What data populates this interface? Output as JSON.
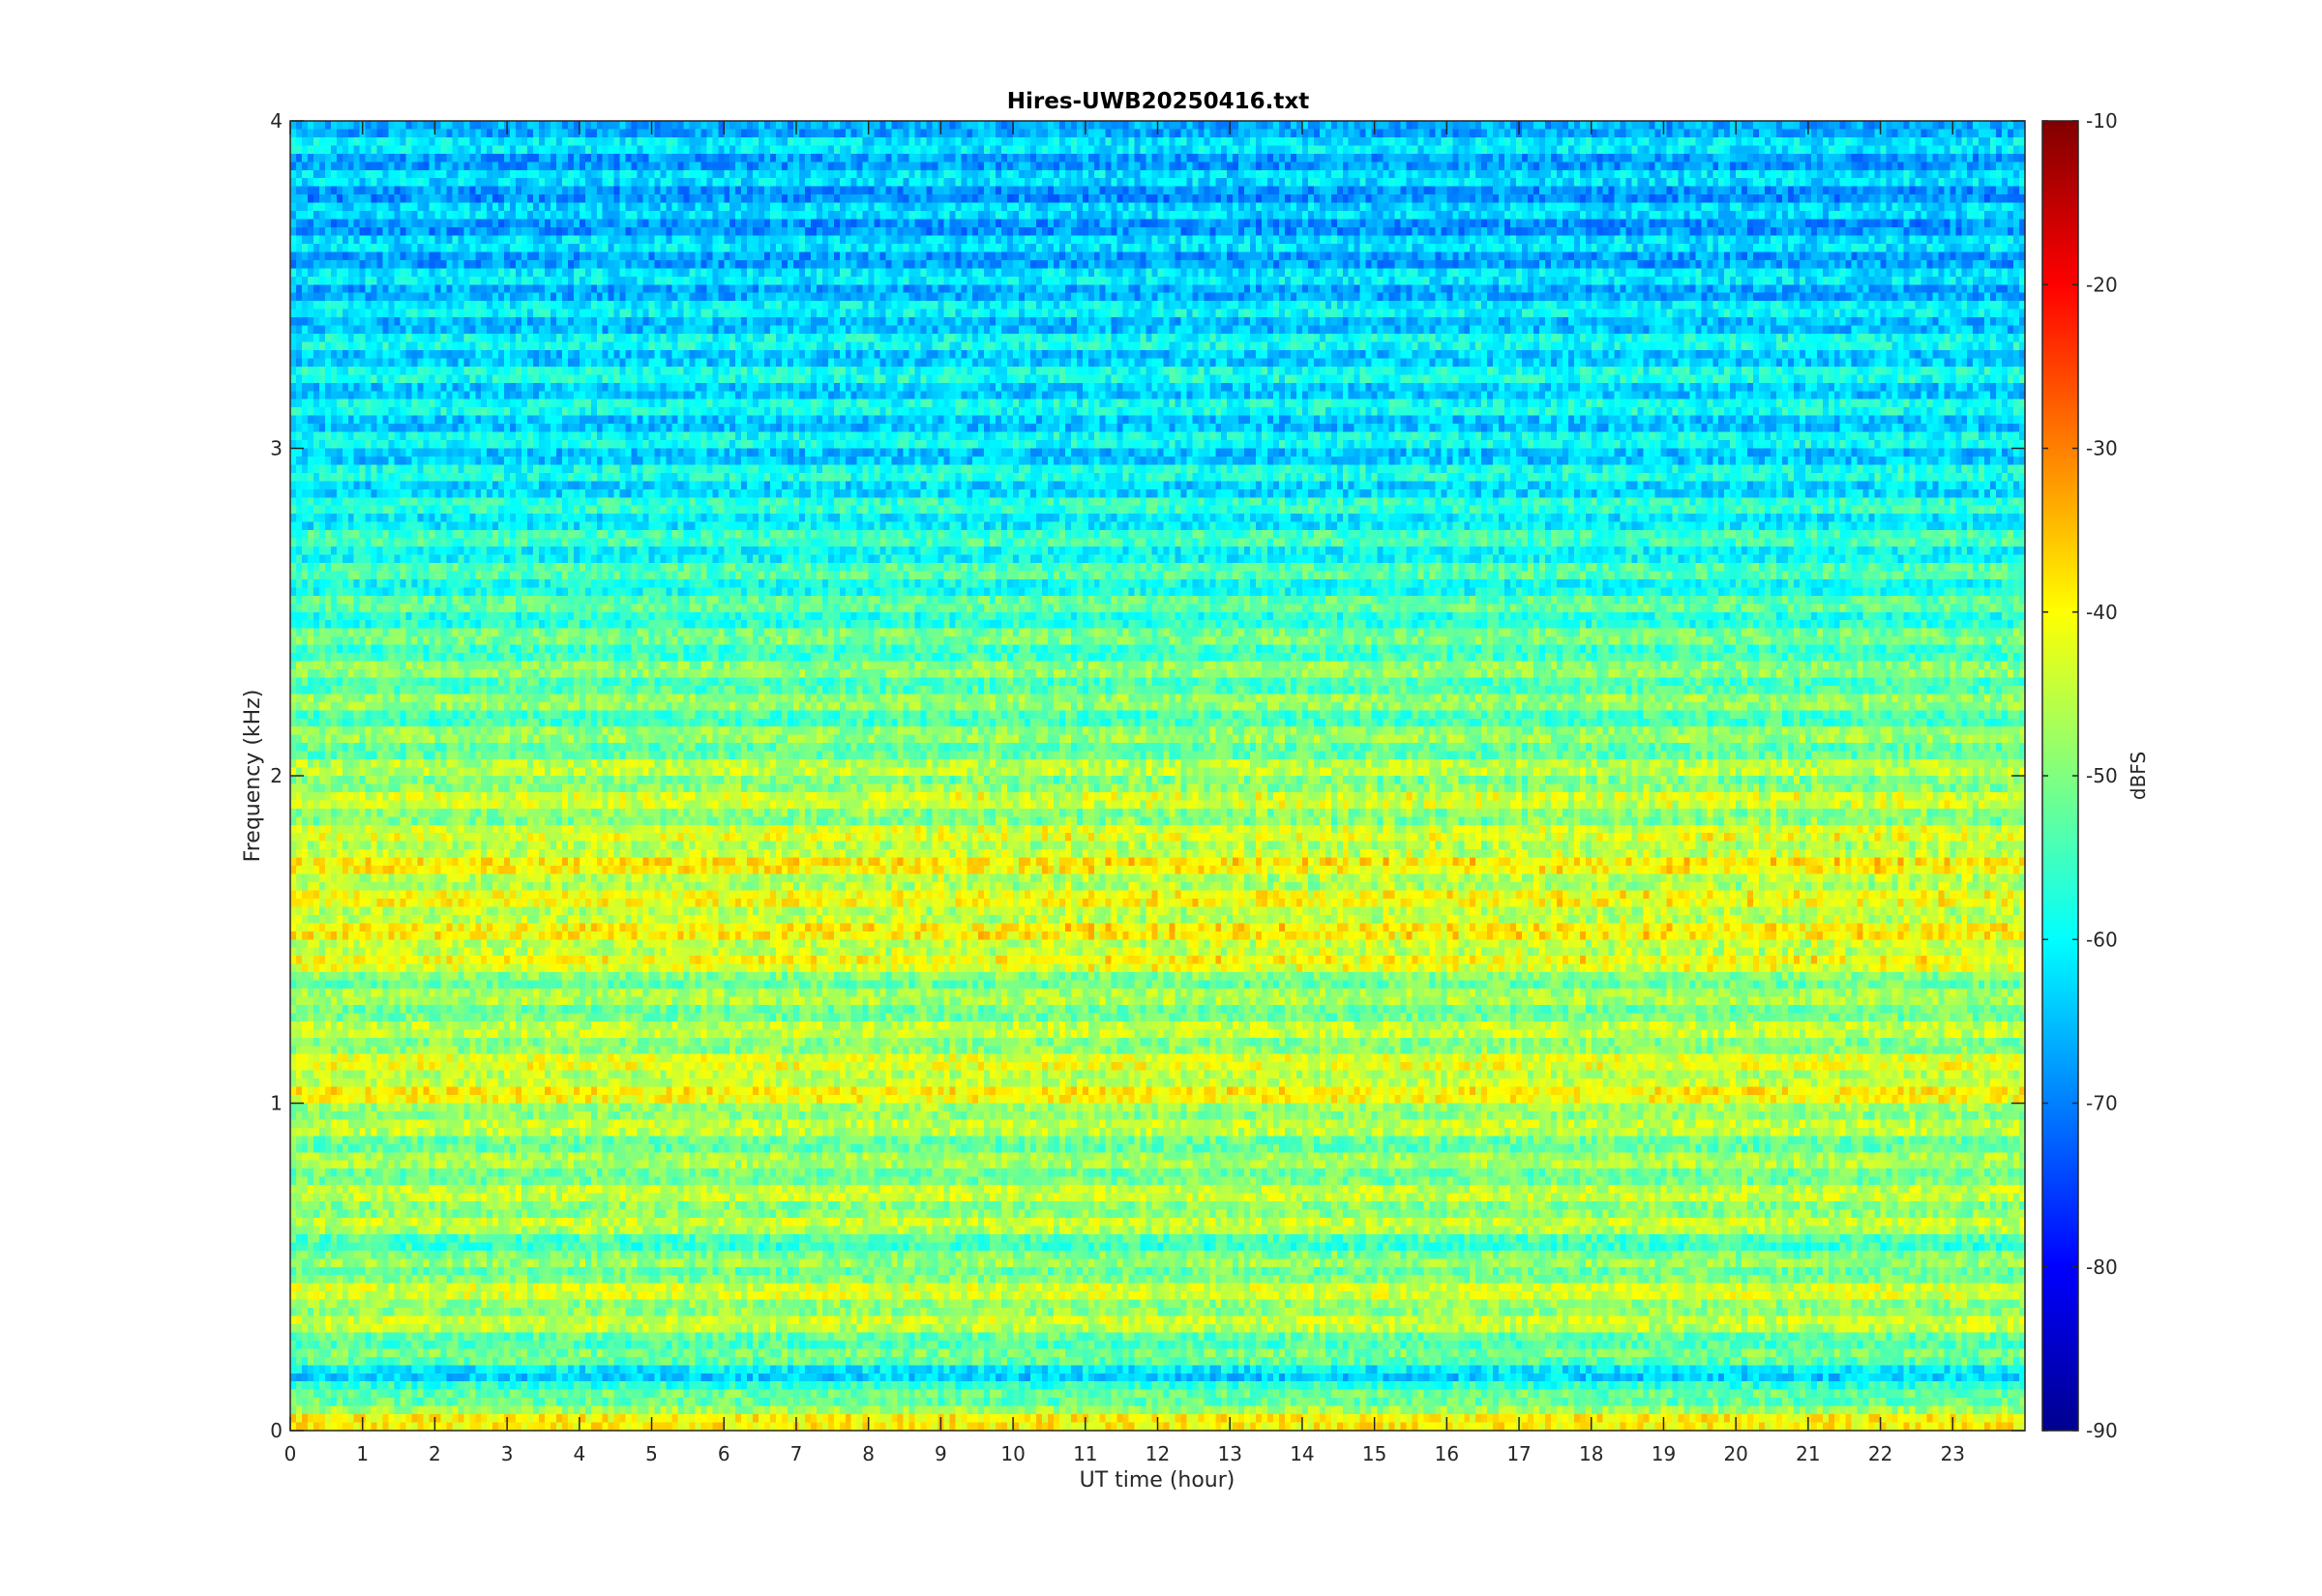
{
  "chart_data": {
    "type": "heatmap",
    "title": "Hires-UWB20250416.txt",
    "xlabel": "UT time (hour)",
    "ylabel": "Frequency (kHz)",
    "colorbar_label": "dBFS",
    "xlim": [
      0,
      24
    ],
    "ylim": [
      0,
      4
    ],
    "clim": [
      -90,
      -10
    ],
    "x_ticks": [
      "0",
      "1",
      "2",
      "3",
      "4",
      "5",
      "6",
      "7",
      "8",
      "9",
      "10",
      "11",
      "12",
      "13",
      "14",
      "15",
      "16",
      "17",
      "18",
      "19",
      "20",
      "21",
      "22",
      "23"
    ],
    "y_ticks": [
      "0",
      "1",
      "2",
      "3",
      "4"
    ],
    "colorbar_ticks": [
      "-10",
      "-20",
      "-30",
      "-40",
      "-50",
      "-60",
      "-70",
      "-80",
      "-90"
    ],
    "colormap": "jet",
    "grid": false,
    "description_bands_khz": {
      "strongest": [
        0.05,
        1.05,
        1.45,
        1.55,
        1.65,
        1.75
      ],
      "note": ""
    },
    "band_levels_dbfs": [
      {
        "f": 0.05,
        "level": -42
      },
      {
        "f": 0.15,
        "level": -62
      },
      {
        "f": 0.25,
        "level": -52
      },
      {
        "f": 0.35,
        "level": -46
      },
      {
        "f": 0.45,
        "level": -46
      },
      {
        "f": 0.55,
        "level": -54
      },
      {
        "f": 0.65,
        "level": -46
      },
      {
        "f": 0.75,
        "level": -48
      },
      {
        "f": 0.85,
        "level": -50
      },
      {
        "f": 0.95,
        "level": -47
      },
      {
        "f": 1.05,
        "level": -41
      },
      {
        "f": 1.15,
        "level": -46
      },
      {
        "f": 1.25,
        "level": -48
      },
      {
        "f": 1.35,
        "level": -50
      },
      {
        "f": 1.45,
        "level": -42
      },
      {
        "f": 1.55,
        "level": -42
      },
      {
        "f": 1.65,
        "level": -44
      },
      {
        "f": 1.75,
        "level": -41
      },
      {
        "f": 1.85,
        "level": -47
      },
      {
        "f": 1.95,
        "level": -46
      },
      {
        "f": 2.05,
        "level": -49
      },
      {
        "f": 2.15,
        "level": -52
      },
      {
        "f": 2.25,
        "level": -51
      },
      {
        "f": 2.35,
        "level": -52
      },
      {
        "f": 2.5,
        "level": -55
      },
      {
        "f": 2.75,
        "level": -58
      },
      {
        "f": 3.0,
        "level": -62
      },
      {
        "f": 3.25,
        "level": -61
      },
      {
        "f": 3.5,
        "level": -64
      },
      {
        "f": 3.75,
        "level": -66
      },
      {
        "f": 3.95,
        "level": -64
      }
    ]
  }
}
